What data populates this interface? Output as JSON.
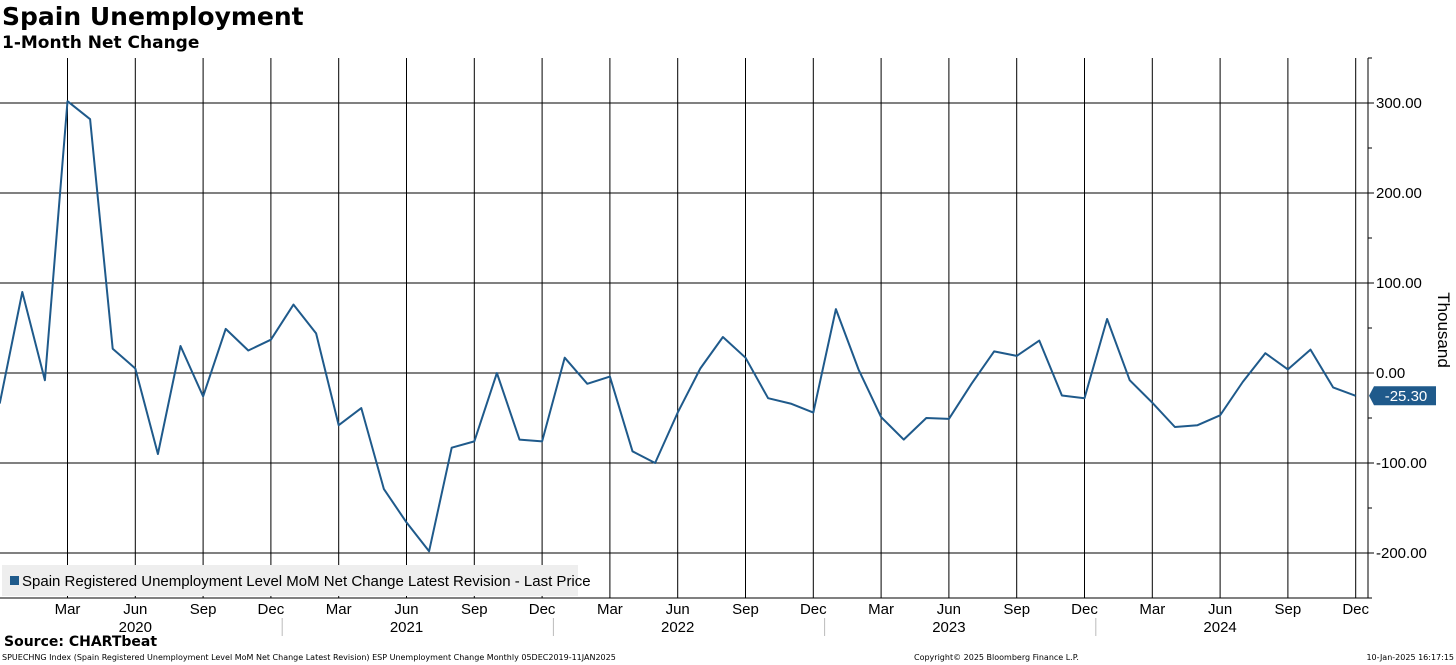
{
  "chart_data": {
    "type": "line",
    "title": "Spain Unemployment",
    "subtitle": "1-Month Net Change",
    "ylabel": "Thousand",
    "ylim": [
      -250,
      350
    ],
    "y_ticks": [
      300,
      200,
      100,
      0,
      -100,
      -200
    ],
    "y_tick_labels": [
      "300.00",
      "200.00",
      "100.00",
      "0.00",
      "-100.00",
      "-200.00"
    ],
    "x_range": [
      "2019-12",
      "2024-12"
    ],
    "x_ticks": [
      {
        "month": "2020-03",
        "label": "Mar"
      },
      {
        "month": "2020-06",
        "label": "Jun"
      },
      {
        "month": "2020-09",
        "label": "Sep"
      },
      {
        "month": "2020-12",
        "label": "Dec"
      },
      {
        "month": "2021-03",
        "label": "Mar"
      },
      {
        "month": "2021-06",
        "label": "Jun"
      },
      {
        "month": "2021-09",
        "label": "Sep"
      },
      {
        "month": "2021-12",
        "label": "Dec"
      },
      {
        "month": "2022-03",
        "label": "Mar"
      },
      {
        "month": "2022-06",
        "label": "Jun"
      },
      {
        "month": "2022-09",
        "label": "Sep"
      },
      {
        "month": "2022-12",
        "label": "Dec"
      },
      {
        "month": "2023-03",
        "label": "Mar"
      },
      {
        "month": "2023-06",
        "label": "Jun"
      },
      {
        "month": "2023-09",
        "label": "Sep"
      },
      {
        "month": "2023-12",
        "label": "Dec"
      },
      {
        "month": "2024-03",
        "label": "Mar"
      },
      {
        "month": "2024-06",
        "label": "Jun"
      },
      {
        "month": "2024-09",
        "label": "Sep"
      },
      {
        "month": "2024-12",
        "label": "Dec"
      }
    ],
    "year_labels": [
      {
        "month": "2020-06",
        "label": "2020"
      },
      {
        "month": "2021-06",
        "label": "2021"
      },
      {
        "month": "2022-06",
        "label": "2022"
      },
      {
        "month": "2023-06",
        "label": "2023"
      },
      {
        "month": "2024-06",
        "label": "2024"
      }
    ],
    "year_separators": [
      "2020-12",
      "2021-12",
      "2022-12",
      "2023-12"
    ],
    "grid": true,
    "legend_position": "bottom-left",
    "series": [
      {
        "name": "Spain Registered Unemployment Level MoM Net Change Latest Revision - Last Price",
        "color": "#1f5a8b",
        "x": [
          "2019-12",
          "2020-01",
          "2020-02",
          "2020-03",
          "2020-04",
          "2020-05",
          "2020-06",
          "2020-07",
          "2020-08",
          "2020-09",
          "2020-10",
          "2020-11",
          "2020-12",
          "2021-01",
          "2021-02",
          "2021-03",
          "2021-04",
          "2021-05",
          "2021-06",
          "2021-07",
          "2021-08",
          "2021-09",
          "2021-10",
          "2021-11",
          "2021-12",
          "2022-01",
          "2022-02",
          "2022-03",
          "2022-04",
          "2022-05",
          "2022-06",
          "2022-07",
          "2022-08",
          "2022-09",
          "2022-10",
          "2022-11",
          "2022-12",
          "2023-01",
          "2023-02",
          "2023-03",
          "2023-04",
          "2023-05",
          "2023-06",
          "2023-07",
          "2023-08",
          "2023-09",
          "2023-10",
          "2023-11",
          "2023-12",
          "2024-01",
          "2024-02",
          "2024-03",
          "2024-04",
          "2024-05",
          "2024-06",
          "2024-07",
          "2024-08",
          "2024-09",
          "2024-10",
          "2024-11",
          "2024-12"
        ],
        "values": [
          -34,
          90,
          -8,
          302,
          282,
          27,
          5,
          -90,
          30,
          -26,
          49,
          25,
          37,
          76,
          44,
          -58,
          -39,
          -129,
          -166,
          -198,
          -83,
          -76,
          0,
          -74,
          -76,
          17,
          -12,
          -4,
          -87,
          -100,
          -44,
          5,
          40,
          17,
          -28,
          -34,
          -44,
          71,
          4,
          -49,
          -74,
          -50,
          -51,
          -12,
          24,
          19,
          36,
          -25,
          -28,
          60,
          -8,
          -33,
          -60,
          -58,
          -47,
          -10,
          22,
          4,
          26,
          -16,
          -25.3
        ]
      }
    ],
    "last_value_label": "-25.30"
  },
  "source": "Source: CHARTbeat",
  "footer": {
    "left": "SPUECHNG Index (Spain Registered Unemployment Level MoM Net Change Latest Revision) ESP Unemployment Change  Monthly 05DEC2019-11JAN2025",
    "center": "Copyright© 2025 Bloomberg Finance L.P.",
    "right": "10-Jan-2025 16:17:15"
  },
  "colors": {
    "line": "#1f5a8b",
    "grid": "#000000",
    "legend_bg": "#eeeeee"
  }
}
